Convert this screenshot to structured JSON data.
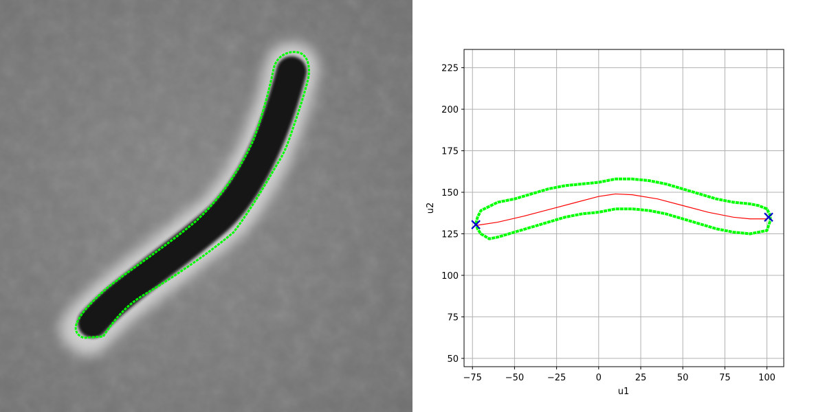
{
  "image_panel": {
    "description_colors": {
      "outline": "#00ff00",
      "background": "#7f7f7f",
      "cell_body": "#141414",
      "halo": "#e6e6e6"
    }
  },
  "chart_data": {
    "type": "line",
    "title": "",
    "xlabel": "u1",
    "ylabel": "u2",
    "xlim": [
      -80,
      110
    ],
    "ylim": [
      45,
      236
    ],
    "xticks": [
      -75,
      -50,
      -25,
      0,
      25,
      50,
      75,
      100
    ],
    "yticks": [
      50,
      75,
      100,
      125,
      150,
      175,
      200,
      225
    ],
    "grid": true,
    "colors": {
      "outline": "#00ff00",
      "midline": "#ff0000",
      "endpoints": "#0000cd",
      "grid": "#b0b0b0"
    },
    "outline_upper": {
      "x": [
        -73,
        -72,
        -70,
        -66,
        -60,
        -50,
        -40,
        -30,
        -20,
        -10,
        0,
        10,
        20,
        30,
        40,
        50,
        60,
        70,
        80,
        90,
        95,
        100,
        102
      ],
      "y": [
        131,
        135,
        139,
        141,
        144,
        146,
        149,
        152,
        154,
        155,
        156,
        158,
        158,
        157,
        155,
        152,
        149,
        146,
        144,
        143,
        142,
        140,
        136
      ]
    },
    "outline_lower": {
      "x": [
        -73,
        -72,
        -70,
        -65,
        -60,
        -50,
        -40,
        -30,
        -20,
        -10,
        0,
        10,
        20,
        30,
        40,
        50,
        60,
        70,
        80,
        90,
        95,
        100,
        102
      ],
      "y": [
        131,
        128,
        125,
        122,
        123,
        126,
        129,
        132,
        135,
        137,
        138,
        140,
        140,
        139,
        137,
        134,
        131,
        128,
        126,
        125,
        126,
        127,
        133
      ]
    },
    "midline": {
      "x": [
        -73,
        -60,
        -45,
        -30,
        -15,
        0,
        10,
        20,
        35,
        50,
        65,
        80,
        90,
        100,
        101
      ],
      "y": [
        130,
        132,
        135.5,
        139.5,
        143.5,
        147.5,
        149,
        148.5,
        146,
        142,
        138,
        135,
        134,
        134,
        135
      ]
    },
    "endpoints": {
      "x": [
        -73,
        101
      ],
      "y": [
        130.5,
        135
      ]
    }
  }
}
